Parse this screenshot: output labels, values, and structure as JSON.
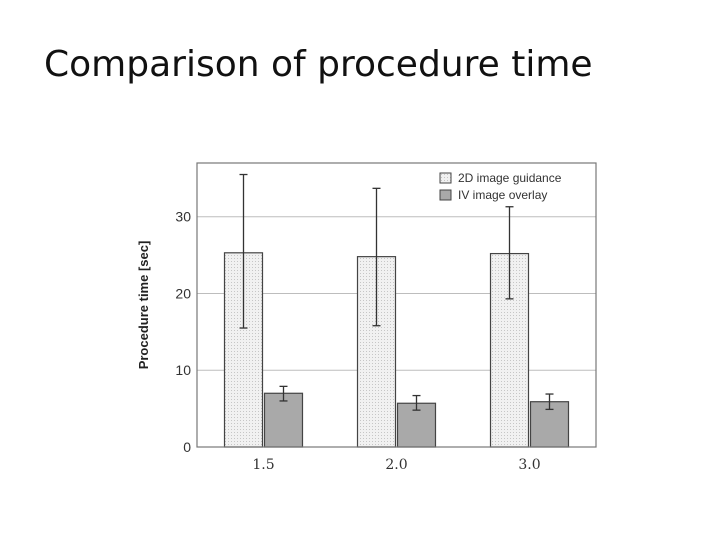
{
  "slide": {
    "title": "Comparison of procedure time"
  },
  "chart_data": {
    "type": "bar",
    "title": "",
    "xlabel": "",
    "ylabel": "Procedure time [sec]",
    "categories": [
      "1.5",
      "2.0",
      "3.0"
    ],
    "ylim": [
      0,
      37
    ],
    "yticks": [
      0,
      10,
      20,
      30
    ],
    "grid": true,
    "legend_position": "top-right",
    "series": [
      {
        "name": "2D image guidance",
        "values": [
          25.3,
          24.8,
          25.2
        ],
        "error": [
          [
            15.5,
            35.5
          ],
          [
            15.8,
            33.7
          ],
          [
            19.3,
            31.3
          ]
        ],
        "color": "#eeeeee"
      },
      {
        "name": "IV image overlay",
        "values": [
          7.0,
          5.7,
          5.9
        ],
        "error": [
          [
            6.0,
            7.9
          ],
          [
            4.8,
            6.7
          ],
          [
            4.9,
            6.9
          ]
        ],
        "color": "#a9a9a9"
      }
    ]
  }
}
